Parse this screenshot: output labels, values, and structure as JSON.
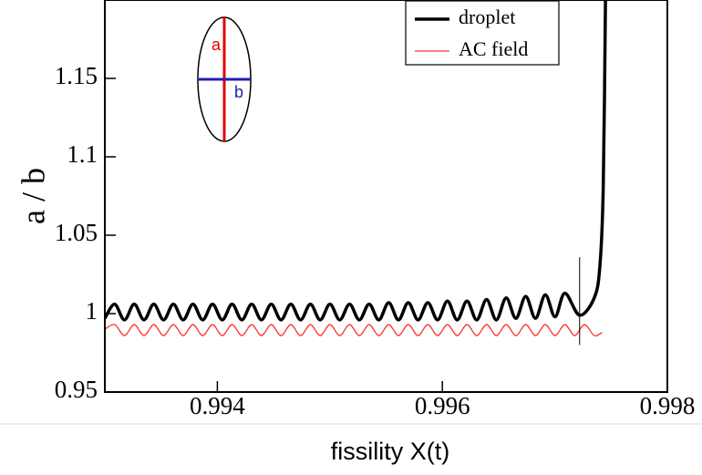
{
  "chart_data": {
    "type": "line",
    "xlabel": "fissility X(t)",
    "ylabel": "a / b",
    "xlim": [
      0.993,
      0.998
    ],
    "ylim": [
      0.95,
      1.2
    ],
    "xticks": [
      0.994,
      0.996,
      0.998
    ],
    "yticks": [
      0.95,
      1,
      1.05,
      1.1,
      1.15
    ],
    "legend": "upper right",
    "series": [
      {
        "name": "droplet",
        "color": "#000000",
        "x": [
          0.993,
          0.993087,
          0.993174,
          0.993261,
          0.993348,
          0.993435,
          0.993522,
          0.993609,
          0.993696,
          0.993783,
          0.99387,
          0.993957,
          0.994044,
          0.994131,
          0.994218,
          0.994305,
          0.994392,
          0.994479,
          0.994566,
          0.994653,
          0.99474,
          0.994827,
          0.994914,
          0.995001,
          0.995088,
          0.995175,
          0.995262,
          0.995349,
          0.995436,
          0.995523,
          0.99561,
          0.995697,
          0.995784,
          0.995871,
          0.995958,
          0.996045,
          0.996132,
          0.996219,
          0.996306,
          0.996393,
          0.99648,
          0.996567,
          0.996654,
          0.996741,
          0.996828,
          0.996915,
          0.997002,
          0.997089,
          0.99722,
          0.99735,
          0.9974,
          0.99743,
          0.99745
        ],
        "values": [
          0.997,
          1.006,
          0.996,
          1.006,
          0.996,
          1.006,
          0.996,
          1.006,
          0.996,
          1.006,
          0.996,
          1.006,
          0.996,
          1.006,
          0.996,
          1.006,
          0.996,
          1.006,
          0.996,
          1.006,
          0.996,
          1.006,
          0.996,
          1.006,
          0.996,
          1.006,
          0.996,
          1.006,
          0.996,
          1.007,
          0.996,
          1.007,
          0.996,
          1.007,
          0.996,
          1.008,
          0.996,
          1.008,
          0.996,
          1.009,
          0.996,
          1.01,
          0.997,
          1.011,
          0.997,
          1.012,
          0.998,
          1.013,
          0.999,
          1.01,
          1.03,
          1.08,
          1.2
        ]
      },
      {
        "name": "AC field",
        "color": "#ff3333",
        "x": [
          0.993,
          0.993087,
          0.993174,
          0.993261,
          0.993348,
          0.993435,
          0.993522,
          0.993609,
          0.993696,
          0.993783,
          0.99387,
          0.993957,
          0.994044,
          0.994131,
          0.994218,
          0.994305,
          0.994392,
          0.994479,
          0.994566,
          0.994653,
          0.99474,
          0.994827,
          0.994914,
          0.995001,
          0.995088,
          0.995175,
          0.995262,
          0.995349,
          0.995436,
          0.995523,
          0.99561,
          0.995697,
          0.995784,
          0.995871,
          0.995958,
          0.996045,
          0.996132,
          0.996219,
          0.996306,
          0.996393,
          0.99648,
          0.996567,
          0.996654,
          0.996741,
          0.996828,
          0.996915,
          0.997002,
          0.997089,
          0.997176,
          0.997263,
          0.99735,
          0.99742
        ],
        "values": [
          0.99,
          0.993,
          0.986,
          0.993,
          0.986,
          0.993,
          0.986,
          0.993,
          0.986,
          0.993,
          0.986,
          0.993,
          0.986,
          0.993,
          0.986,
          0.993,
          0.986,
          0.993,
          0.986,
          0.993,
          0.986,
          0.993,
          0.986,
          0.993,
          0.986,
          0.993,
          0.986,
          0.993,
          0.986,
          0.993,
          0.986,
          0.993,
          0.986,
          0.993,
          0.986,
          0.993,
          0.986,
          0.993,
          0.986,
          0.993,
          0.986,
          0.993,
          0.986,
          0.993,
          0.986,
          0.993,
          0.986,
          0.993,
          0.986,
          0.993,
          0.986,
          0.988
        ]
      }
    ],
    "vline": {
      "x": 0.99722,
      "y": [
        0.98,
        1.036
      ]
    },
    "inset": {
      "major_label": "a",
      "minor_label": "b"
    }
  }
}
